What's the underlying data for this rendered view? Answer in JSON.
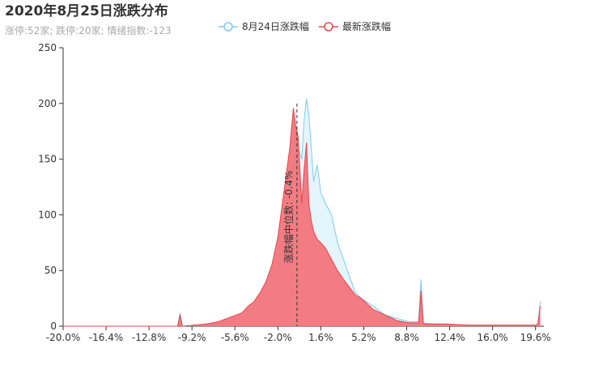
{
  "chart_data": {
    "type": "area",
    "title": "2020年8月25日涨跌分布",
    "subtitle": "涨停:52家; 跌停:20家; 情绪指数:-123",
    "x": [
      -20,
      -16,
      -12,
      -10.4,
      -10.2,
      -10,
      -9,
      -8,
      -7,
      -6,
      -5,
      -4.5,
      -4,
      -3.5,
      -3,
      -2.5,
      -2,
      -1.5,
      -1,
      -0.7,
      -0.5,
      -0.3,
      0,
      0.2,
      0.4,
      0.6,
      0.8,
      1,
      1.3,
      1.6,
      2,
      2.5,
      3,
      3.5,
      4,
      4.5,
      5,
      6,
      7,
      8,
      9,
      9.8,
      10,
      10.2,
      11,
      12,
      14,
      16,
      18,
      19.6,
      19.8,
      20
    ],
    "series": [
      {
        "name": "8月24日涨跌幅",
        "color": "#7ecbf0",
        "fill": "#dff2fb",
        "values": [
          0,
          0,
          0,
          0,
          12,
          0,
          1,
          1,
          2,
          4,
          6,
          8,
          10,
          15,
          25,
          35,
          50,
          80,
          110,
          140,
          175,
          160,
          150,
          185,
          204,
          190,
          160,
          130,
          145,
          120,
          110,
          100,
          75,
          60,
          45,
          30,
          25,
          18,
          10,
          7,
          4,
          4,
          42,
          3,
          2,
          2,
          1,
          1,
          1,
          1,
          2,
          22
        ]
      },
      {
        "name": "最新涨跌幅",
        "color": "#e8464f",
        "fill": "#f2757b",
        "values": [
          0,
          0,
          0,
          0,
          10,
          0,
          1,
          2,
          4,
          8,
          12,
          18,
          22,
          30,
          40,
          55,
          80,
          120,
          160,
          196,
          180,
          170,
          110,
          140,
          165,
          110,
          95,
          85,
          78,
          75,
          70,
          60,
          50,
          42,
          35,
          28,
          25,
          15,
          10,
          5,
          3,
          3,
          32,
          2,
          2,
          2,
          1,
          1,
          1,
          1,
          2,
          18
        ]
      }
    ],
    "median": {
      "value": -0.4,
      "label": "涨跌幅中位数: -0.4%"
    },
    "xlim": [
      -20,
      20.3
    ],
    "xticks": [
      {
        "value": -20,
        "label": "-20.0%"
      },
      {
        "value": -16.4,
        "label": "-16.4%"
      },
      {
        "value": -12.8,
        "label": "-12.8%"
      },
      {
        "value": -9.2,
        "label": "-9.2%"
      },
      {
        "value": -5.6,
        "label": "-5.6%"
      },
      {
        "value": -2,
        "label": "-2.0%"
      },
      {
        "value": 1.6,
        "label": "1.6%"
      },
      {
        "value": 5.2,
        "label": "5.2%"
      },
      {
        "value": 8.8,
        "label": "8.8%"
      },
      {
        "value": 12.4,
        "label": "12.4%"
      },
      {
        "value": 16,
        "label": "16.0%"
      },
      {
        "value": 19.6,
        "label": "19.6%"
      }
    ],
    "ylim": [
      0,
      250
    ],
    "yticks": [
      0,
      50,
      100,
      150,
      200,
      250
    ]
  }
}
